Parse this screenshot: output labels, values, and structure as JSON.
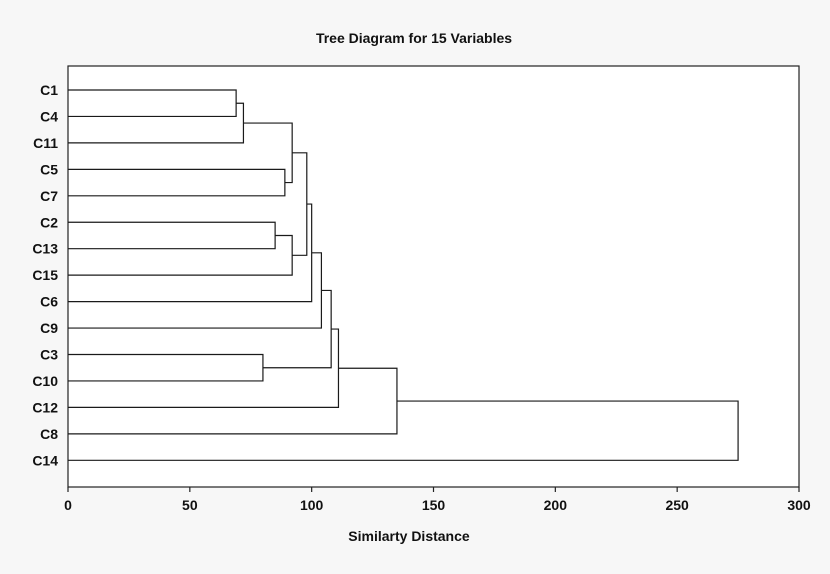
{
  "chart_data": {
    "type": "dendrogram",
    "title": "Tree Diagram for 15 Variables",
    "xlabel": "Similarty Distance",
    "xlim": [
      0,
      300
    ],
    "x_ticks": [
      0,
      50,
      100,
      150,
      200,
      250,
      300
    ],
    "leaves": [
      "C1",
      "C4",
      "C11",
      "C5",
      "C7",
      "C2",
      "C13",
      "C15",
      "C6",
      "C9",
      "C3",
      "C10",
      "C12",
      "C8",
      "C14"
    ],
    "merges": [
      {
        "id": "m1",
        "left": "C1",
        "right": "C4",
        "height": 69
      },
      {
        "id": "m2",
        "left": "m1",
        "right": "C11",
        "height": 72
      },
      {
        "id": "m3",
        "left": "C5",
        "right": "C7",
        "height": 89
      },
      {
        "id": "m4",
        "left": "m2",
        "right": "m3",
        "height": 92
      },
      {
        "id": "m5",
        "left": "C2",
        "right": "C13",
        "height": 85
      },
      {
        "id": "m6",
        "left": "m5",
        "right": "C15",
        "height": 92
      },
      {
        "id": "m7",
        "left": "m4",
        "right": "m6",
        "height": 98
      },
      {
        "id": "m8",
        "left": "m7",
        "right": "C6",
        "height": 100
      },
      {
        "id": "m9",
        "left": "m8",
        "right": "C9",
        "height": 104
      },
      {
        "id": "m10",
        "left": "C3",
        "right": "C10",
        "height": 80
      },
      {
        "id": "m11",
        "left": "m9",
        "right": "m10",
        "height": 108
      },
      {
        "id": "m12",
        "left": "m11",
        "right": "C12",
        "height": 111
      },
      {
        "id": "m13",
        "left": "m12",
        "right": "C8",
        "height": 135
      },
      {
        "id": "m14",
        "left": "m13",
        "right": "C14",
        "height": 275
      }
    ],
    "grid": false,
    "legend": "none"
  }
}
